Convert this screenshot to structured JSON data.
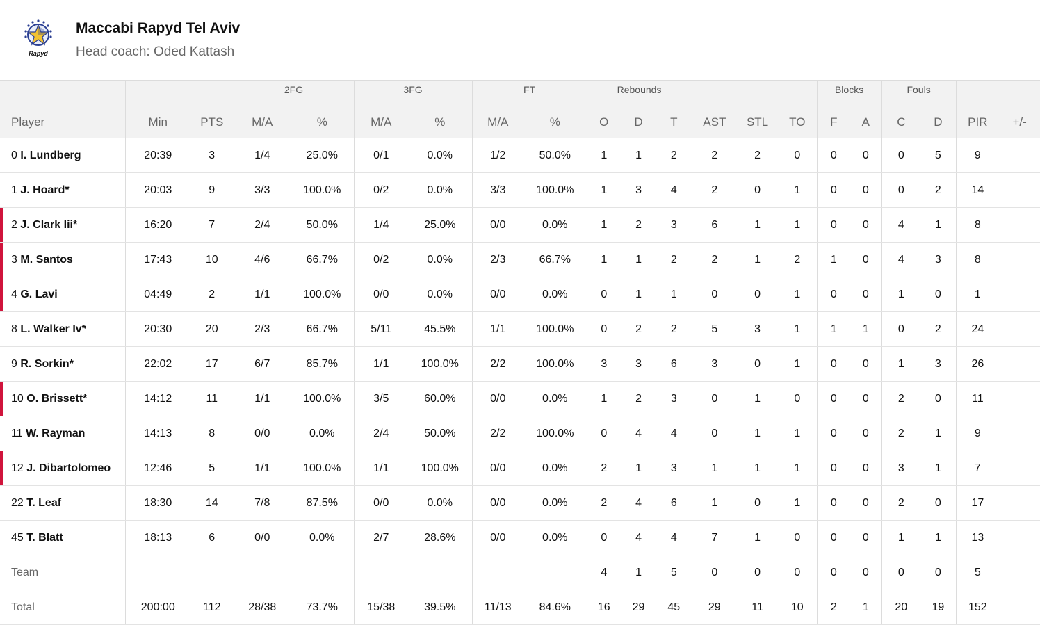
{
  "team": {
    "name": "Maccabi Rapyd Tel Aviv",
    "coach_label": "Head coach:",
    "coach_name": "Oded Kattash",
    "logo_text": "Rapyd",
    "accent_color": "#d0143c"
  },
  "table": {
    "groups": [
      "2FG",
      "3FG",
      "FT",
      "Rebounds",
      "Blocks",
      "Fouls"
    ],
    "columns": [
      "Player",
      "Min",
      "PTS",
      "M/A",
      "%",
      "M/A",
      "%",
      "M/A",
      "%",
      "O",
      "D",
      "T",
      "AST",
      "STL",
      "TO",
      "F",
      "A",
      "C",
      "D",
      "PIR",
      "+/-"
    ],
    "rows": [
      {
        "num": "0",
        "name": "I. Lundberg",
        "starter": false,
        "cells": [
          "20:39",
          "3",
          "1/4",
          "25.0%",
          "0/1",
          "0.0%",
          "1/2",
          "50.0%",
          "1",
          "1",
          "2",
          "2",
          "2",
          "0",
          "0",
          "0",
          "0",
          "5",
          "9",
          ""
        ]
      },
      {
        "num": "1",
        "name": "J. Hoard*",
        "starter": false,
        "cells": [
          "20:03",
          "9",
          "3/3",
          "100.0%",
          "0/2",
          "0.0%",
          "3/3",
          "100.0%",
          "1",
          "3",
          "4",
          "2",
          "0",
          "1",
          "0",
          "0",
          "0",
          "2",
          "14",
          ""
        ]
      },
      {
        "num": "2",
        "name": "J. Clark Iii*",
        "starter": true,
        "cells": [
          "16:20",
          "7",
          "2/4",
          "50.0%",
          "1/4",
          "25.0%",
          "0/0",
          "0.0%",
          "1",
          "2",
          "3",
          "6",
          "1",
          "1",
          "0",
          "0",
          "4",
          "1",
          "8",
          ""
        ]
      },
      {
        "num": "3",
        "name": "M. Santos",
        "starter": true,
        "cells": [
          "17:43",
          "10",
          "4/6",
          "66.7%",
          "0/2",
          "0.0%",
          "2/3",
          "66.7%",
          "1",
          "1",
          "2",
          "2",
          "1",
          "2",
          "1",
          "0",
          "4",
          "3",
          "8",
          ""
        ]
      },
      {
        "num": "4",
        "name": "G. Lavi",
        "starter": true,
        "cells": [
          "04:49",
          "2",
          "1/1",
          "100.0%",
          "0/0",
          "0.0%",
          "0/0",
          "0.0%",
          "0",
          "1",
          "1",
          "0",
          "0",
          "1",
          "0",
          "0",
          "1",
          "0",
          "1",
          ""
        ]
      },
      {
        "num": "8",
        "name": "L. Walker Iv*",
        "starter": false,
        "cells": [
          "20:30",
          "20",
          "2/3",
          "66.7%",
          "5/11",
          "45.5%",
          "1/1",
          "100.0%",
          "0",
          "2",
          "2",
          "5",
          "3",
          "1",
          "1",
          "1",
          "0",
          "2",
          "24",
          ""
        ]
      },
      {
        "num": "9",
        "name": "R. Sorkin*",
        "starter": false,
        "cells": [
          "22:02",
          "17",
          "6/7",
          "85.7%",
          "1/1",
          "100.0%",
          "2/2",
          "100.0%",
          "3",
          "3",
          "6",
          "3",
          "0",
          "1",
          "0",
          "0",
          "1",
          "3",
          "26",
          ""
        ]
      },
      {
        "num": "10",
        "name": "O. Brissett*",
        "starter": true,
        "cells": [
          "14:12",
          "11",
          "1/1",
          "100.0%",
          "3/5",
          "60.0%",
          "0/0",
          "0.0%",
          "1",
          "2",
          "3",
          "0",
          "1",
          "0",
          "0",
          "0",
          "2",
          "0",
          "11",
          ""
        ]
      },
      {
        "num": "11",
        "name": "W. Rayman",
        "starter": false,
        "cells": [
          "14:13",
          "8",
          "0/0",
          "0.0%",
          "2/4",
          "50.0%",
          "2/2",
          "100.0%",
          "0",
          "4",
          "4",
          "0",
          "1",
          "1",
          "0",
          "0",
          "2",
          "1",
          "9",
          ""
        ]
      },
      {
        "num": "12",
        "name": "J. Dibartolomeo",
        "starter": true,
        "cells": [
          "12:46",
          "5",
          "1/1",
          "100.0%",
          "1/1",
          "100.0%",
          "0/0",
          "0.0%",
          "2",
          "1",
          "3",
          "1",
          "1",
          "1",
          "0",
          "0",
          "3",
          "1",
          "7",
          ""
        ]
      },
      {
        "num": "22",
        "name": "T. Leaf",
        "starter": false,
        "cells": [
          "18:30",
          "14",
          "7/8",
          "87.5%",
          "0/0",
          "0.0%",
          "0/0",
          "0.0%",
          "2",
          "4",
          "6",
          "1",
          "0",
          "1",
          "0",
          "0",
          "2",
          "0",
          "17",
          ""
        ]
      },
      {
        "num": "45",
        "name": "T. Blatt",
        "starter": false,
        "cells": [
          "18:13",
          "6",
          "0/0",
          "0.0%",
          "2/7",
          "28.6%",
          "0/0",
          "0.0%",
          "0",
          "4",
          "4",
          "7",
          "1",
          "0",
          "0",
          "0",
          "1",
          "1",
          "13",
          ""
        ]
      }
    ],
    "team_row": {
      "label": "Team",
      "cells": [
        "",
        "",
        "",
        "",
        "",
        "",
        "",
        "",
        "4",
        "1",
        "5",
        "0",
        "0",
        "0",
        "0",
        "0",
        "0",
        "0",
        "5",
        ""
      ]
    },
    "total_row": {
      "label": "Total",
      "cells": [
        "200:00",
        "112",
        "28/38",
        "73.7%",
        "15/38",
        "39.5%",
        "11/13",
        "84.6%",
        "16",
        "29",
        "45",
        "29",
        "11",
        "10",
        "2",
        "1",
        "20",
        "19",
        "152",
        ""
      ]
    }
  }
}
